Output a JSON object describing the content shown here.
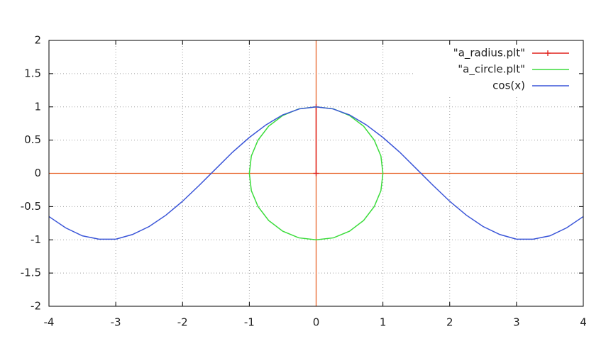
{
  "chart_data": {
    "type": "line",
    "xlim": [
      -4,
      4
    ],
    "ylim": [
      -2,
      2
    ],
    "xticks": [
      -4,
      -3,
      -2,
      -1,
      0,
      1,
      2,
      3,
      4
    ],
    "yticks": [
      -2,
      -1.5,
      -1,
      -0.5,
      0,
      0.5,
      1,
      1.5,
      2
    ],
    "grid": true,
    "zeroaxis": true,
    "zeroaxis_color": "#e8632a",
    "legend": "top-right",
    "series": [
      {
        "name": "\"a_radius.plt\"",
        "color": "#e0201b",
        "marker": "+",
        "x": [
          0,
          0
        ],
        "values": [
          0,
          1
        ]
      },
      {
        "name": "\"a_circle.plt\"",
        "color": "#3bdc3b",
        "x": [
          1,
          0.97,
          0.87,
          0.71,
          0.5,
          0.26,
          0,
          -0.26,
          -0.5,
          -0.71,
          -0.87,
          -0.97,
          -1,
          -0.97,
          -0.87,
          -0.71,
          -0.5,
          -0.26,
          0,
          0.26,
          0.5,
          0.71,
          0.87,
          0.97,
          1
        ],
        "values": [
          0,
          0.26,
          0.5,
          0.71,
          0.87,
          0.97,
          1,
          0.97,
          0.87,
          0.71,
          0.5,
          0.26,
          0,
          -0.26,
          -0.5,
          -0.71,
          -0.87,
          -0.97,
          -1,
          -0.97,
          -0.87,
          -0.71,
          -0.5,
          -0.26,
          0
        ]
      },
      {
        "name": "cos(x)",
        "color": "#3a55d8",
        "x": [
          -4,
          -3.75,
          -3.5,
          -3.25,
          -3,
          -2.75,
          -2.5,
          -2.25,
          -2,
          -1.75,
          -1.5,
          -1.25,
          -1,
          -0.75,
          -0.5,
          -0.25,
          0,
          0.25,
          0.5,
          0.75,
          1,
          1.25,
          1.5,
          1.75,
          2,
          2.25,
          2.5,
          2.75,
          3,
          3.25,
          3.5,
          3.75,
          4
        ],
        "values": [
          -0.65,
          -0.82,
          -0.94,
          -0.99,
          -0.99,
          -0.92,
          -0.8,
          -0.63,
          -0.42,
          -0.18,
          0.07,
          0.32,
          0.54,
          0.73,
          0.88,
          0.97,
          1,
          0.97,
          0.88,
          0.73,
          0.54,
          0.32,
          0.07,
          -0.18,
          -0.42,
          -0.63,
          -0.8,
          -0.92,
          -0.99,
          -0.99,
          -0.94,
          -0.82,
          -0.65
        ]
      }
    ]
  }
}
